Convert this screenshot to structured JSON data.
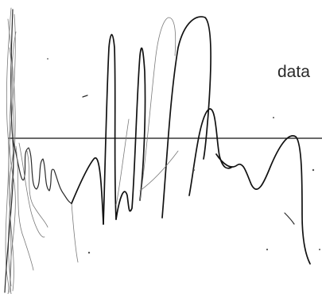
{
  "image": {
    "label": "data",
    "colors": {
      "background": "#ffffff",
      "ink": "#111111",
      "faint_ink": "#7a7a7a",
      "label": "#2a2a2a"
    }
  }
}
